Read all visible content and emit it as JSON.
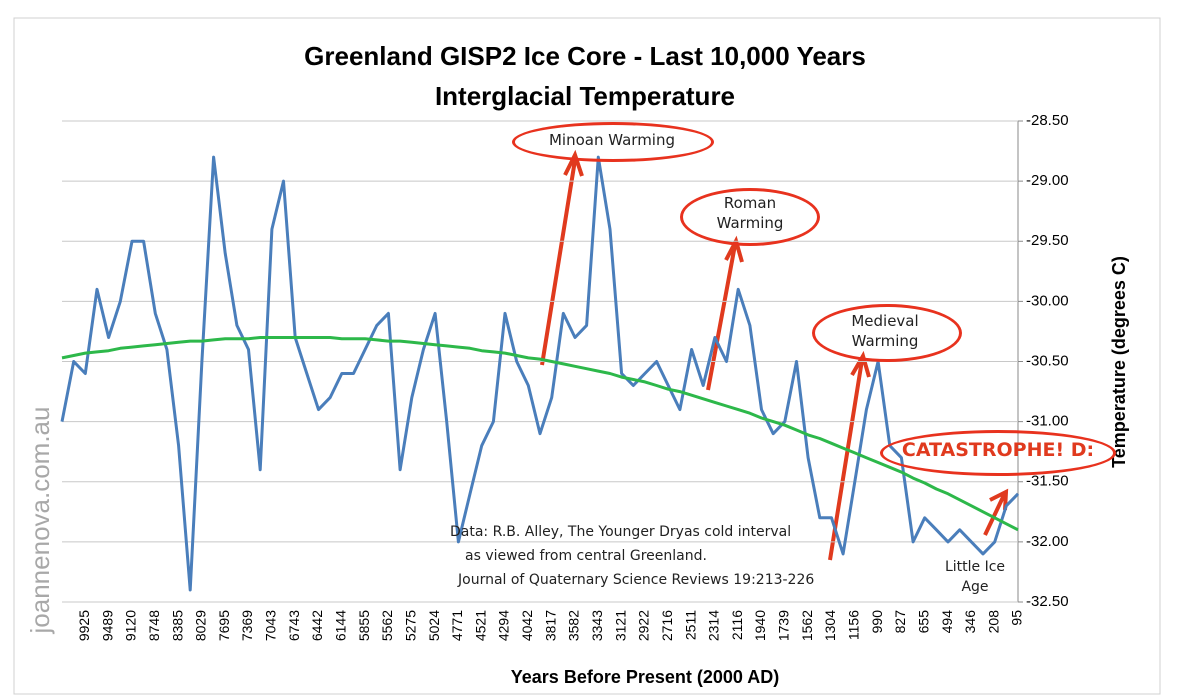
{
  "chart_data": {
    "type": "line",
    "title": "Greenland GISP2 Ice Core - Last 10,000 Years",
    "subtitle": "Interglacial Temperature",
    "x_label": "Years Before Present (2000 AD)",
    "y_label": "Temperature (degrees C)",
    "watermark": "joannenova.com.au",
    "categories": [
      null,
      null,
      "9925",
      null,
      "9489",
      null,
      "9120",
      null,
      "8748",
      null,
      "8385",
      null,
      "8029",
      null,
      "7695",
      null,
      "7369",
      null,
      "7043",
      null,
      "6743",
      null,
      "6442",
      null,
      "6144",
      null,
      "5855",
      null,
      "5562",
      null,
      "5275",
      null,
      "5024",
      null,
      "4771",
      null,
      "4521",
      null,
      "4294",
      null,
      "4042",
      null,
      "3817",
      null,
      "3582",
      null,
      "3343",
      null,
      "3121",
      null,
      "2922",
      null,
      "2716",
      null,
      "2511",
      null,
      "2314",
      null,
      "2116",
      null,
      "1940",
      null,
      "1739",
      null,
      "1562",
      null,
      "1304",
      null,
      "1156",
      null,
      "990",
      null,
      "827",
      null,
      "655",
      null,
      "494",
      null,
      "346",
      null,
      "208",
      null,
      "95"
    ],
    "series": [
      {
        "color": "#4a7ebb",
        "values": [
          -31.0,
          -30.5,
          -30.6,
          -29.9,
          -30.3,
          -30.0,
          -29.5,
          -29.5,
          -30.1,
          -30.4,
          -31.2,
          -32.4,
          -30.5,
          -28.8,
          -29.6,
          -30.2,
          -30.4,
          -31.4,
          -29.4,
          -29.0,
          -30.3,
          -30.6,
          -30.9,
          -30.8,
          -30.6,
          -30.6,
          -30.4,
          -30.2,
          -30.1,
          -31.4,
          -30.8,
          -30.4,
          -30.1,
          -31.0,
          -32.0,
          -31.6,
          -31.2,
          -31.0,
          -30.1,
          -30.5,
          -30.7,
          -31.1,
          -30.8,
          -30.1,
          -30.3,
          -30.2,
          -28.8,
          -29.4,
          -30.6,
          -30.7,
          -30.6,
          -30.5,
          -30.7,
          -30.9,
          -30.4,
          -30.7,
          -30.3,
          -30.5,
          -29.9,
          -30.2,
          -30.9,
          -31.1,
          -31.0,
          -30.5,
          -31.3,
          -31.8,
          -31.8,
          -32.1,
          -31.5,
          -30.9,
          -30.5,
          -31.2,
          -31.3,
          -32.0,
          -31.8,
          -31.9,
          -32.0,
          -31.9,
          -32.0,
          -32.1,
          -32.0,
          -31.7,
          -31.6
        ]
      },
      {
        "color": "#2db84a",
        "values": [
          -30.47,
          -30.45,
          -30.43,
          -30.42,
          -30.41,
          -30.39,
          -30.38,
          -30.37,
          -30.36,
          -30.35,
          -30.34,
          -30.33,
          -30.33,
          -30.32,
          -30.31,
          -30.31,
          -30.31,
          -30.3,
          -30.3,
          -30.3,
          -30.3,
          -30.3,
          -30.3,
          -30.3,
          -30.31,
          -30.31,
          -30.31,
          -30.32,
          -30.33,
          -30.33,
          -30.34,
          -30.35,
          -30.36,
          -30.37,
          -30.38,
          -30.39,
          -30.41,
          -30.42,
          -30.43,
          -30.45,
          -30.47,
          -30.48,
          -30.5,
          -30.52,
          -30.54,
          -30.56,
          -30.58,
          -30.6,
          -30.63,
          -30.65,
          -30.67,
          -30.7,
          -30.73,
          -30.75,
          -30.78,
          -30.81,
          -30.84,
          -30.87,
          -30.9,
          -30.93,
          -30.97,
          -31.0,
          -31.03,
          -31.07,
          -31.11,
          -31.14,
          -31.18,
          -31.22,
          -31.26,
          -31.3,
          -31.34,
          -31.38,
          -31.42,
          -31.47,
          -31.51,
          -31.56,
          -31.6,
          -31.65,
          -31.7,
          -31.75,
          -31.8,
          -31.85,
          -31.9
        ]
      }
    ],
    "ylim": [
      -32.5,
      -28.5
    ],
    "yticks": [
      {
        "value": -32.5,
        "label": "-32.50"
      },
      {
        "value": -32,
        "label": "-32.00"
      },
      {
        "value": -31.5,
        "label": "-31.50"
      },
      {
        "value": -31,
        "label": "-31.00"
      },
      {
        "value": -30.5,
        "label": "-30.50"
      },
      {
        "value": -30,
        "label": "-30.00"
      },
      {
        "value": -29.5,
        "label": "-29.50"
      },
      {
        "value": -29,
        "label": "-29.00"
      },
      {
        "value": -28.5,
        "label": "-28.50"
      }
    ],
    "grid": true,
    "annotations": [
      "Minoan Warming",
      "Roman Warming",
      "Medieval Warming",
      "CATASTROPHE! D:",
      "Little Ice Age"
    ],
    "note": [
      "Data: R.B. Alley,  The Younger Dryas cold interval",
      "as viewed from central Greenland.",
      "Journal of Quaternary  Science Reviews 19:213-226"
    ]
  }
}
